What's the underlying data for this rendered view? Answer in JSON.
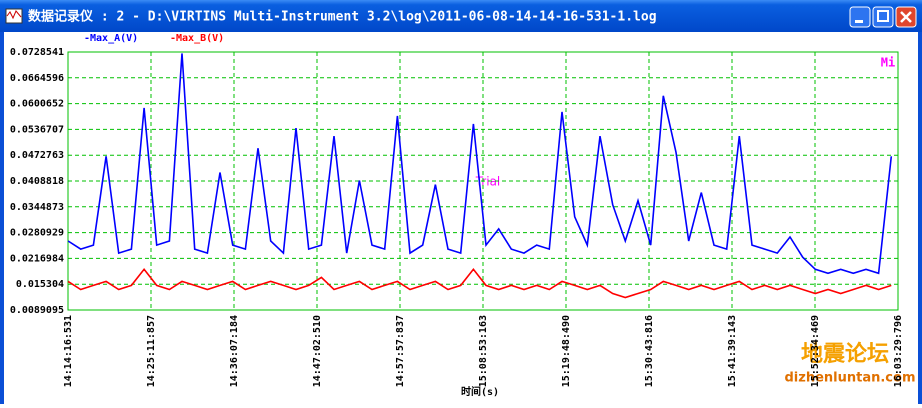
{
  "window": {
    "title": "数据记录仪 : 2 - D:\\VIRTINS Multi-Instrument 3.2\\log\\2011-06-08-14-14-16-531-1.log"
  },
  "watermark": [
    "地震论坛",
    "dizhenluntan.com"
  ],
  "chart_data": {
    "type": "line",
    "x_label": "时间(s)",
    "annotations": [
      "Trial",
      "Mi"
    ],
    "grid": true,
    "x": [
      51257,
      51357,
      51457,
      51557,
      51657,
      51757,
      51857,
      51957,
      52057,
      52157,
      52257,
      52357,
      52457,
      52557,
      52657,
      52757,
      52857,
      52957,
      53057,
      53157,
      53257,
      53357,
      53457,
      53557,
      53657,
      53757,
      53857,
      53957,
      54057,
      54157,
      54257,
      54357,
      54457,
      54557,
      54657,
      54757,
      54857,
      54957,
      55057,
      55157,
      55257,
      55357,
      55457,
      55557,
      55657,
      55757,
      55857,
      55957,
      56057,
      56157,
      56257,
      56357,
      56457,
      56557,
      56657,
      56757,
      56857,
      56957,
      57057,
      57157,
      57257,
      57357,
      57457,
      57557,
      57657,
      57757
    ],
    "series": [
      {
        "name": "-Max_A(V)",
        "color": "#0000ff",
        "values": [
          0.026,
          0.024,
          0.025,
          0.047,
          0.023,
          0.024,
          0.059,
          0.025,
          0.026,
          0.0725,
          0.024,
          0.023,
          0.043,
          0.025,
          0.024,
          0.049,
          0.026,
          0.023,
          0.054,
          0.024,
          0.025,
          0.052,
          0.023,
          0.041,
          0.025,
          0.024,
          0.057,
          0.023,
          0.025,
          0.04,
          0.024,
          0.023,
          0.055,
          0.025,
          0.029,
          0.024,
          0.023,
          0.025,
          0.024,
          0.058,
          0.032,
          0.025,
          0.052,
          0.035,
          0.026,
          0.036,
          0.025,
          0.062,
          0.048,
          0.026,
          0.038,
          0.025,
          0.024,
          0.052,
          0.025,
          0.024,
          0.023,
          0.027,
          0.022,
          0.019,
          0.018,
          0.019,
          0.018,
          0.019,
          0.018,
          0.047
        ]
      },
      {
        "name": "-Max_B(V)",
        "color": "#ff0000",
        "values": [
          0.016,
          0.014,
          0.015,
          0.016,
          0.014,
          0.015,
          0.019,
          0.015,
          0.014,
          0.016,
          0.015,
          0.014,
          0.015,
          0.016,
          0.014,
          0.015,
          0.016,
          0.015,
          0.014,
          0.015,
          0.017,
          0.014,
          0.015,
          0.016,
          0.014,
          0.015,
          0.016,
          0.014,
          0.015,
          0.016,
          0.014,
          0.015,
          0.019,
          0.015,
          0.014,
          0.015,
          0.014,
          0.015,
          0.014,
          0.016,
          0.015,
          0.014,
          0.015,
          0.013,
          0.012,
          0.013,
          0.014,
          0.016,
          0.015,
          0.014,
          0.015,
          0.014,
          0.015,
          0.016,
          0.014,
          0.015,
          0.014,
          0.015,
          0.014,
          0.013,
          0.014,
          0.013,
          0.014,
          0.015,
          0.014,
          0.015
        ]
      }
    ],
    "xlim": [
      51256.531,
      57809.796
    ],
    "xticks": [
      {
        "value": 51256.531,
        "label": "14:14:16:531"
      },
      {
        "value": 51911.857,
        "label": "14:25:11:857"
      },
      {
        "value": 52567.184,
        "label": "14:36:07:184"
      },
      {
        "value": 53222.51,
        "label": "14:47:02:510"
      },
      {
        "value": 53877.837,
        "label": "14:57:57:837"
      },
      {
        "value": 54533.163,
        "label": "15:08:53:163"
      },
      {
        "value": 55188.49,
        "label": "15:19:48:490"
      },
      {
        "value": 55843.816,
        "label": "15:30:43:816"
      },
      {
        "value": 56499.143,
        "label": "15:41:39:143"
      },
      {
        "value": 57154.469,
        "label": "15:52:34:469"
      },
      {
        "value": 57809.796,
        "label": "16:03:29:796"
      }
    ],
    "ylim": [
      0.0089095,
      0.0728541
    ],
    "yticks": [
      0.0089095,
      0.015304,
      0.0216984,
      0.0280929,
      0.0344873,
      0.0408818,
      0.0472763,
      0.0536707,
      0.0600652,
      0.0664596,
      0.0728541
    ]
  }
}
